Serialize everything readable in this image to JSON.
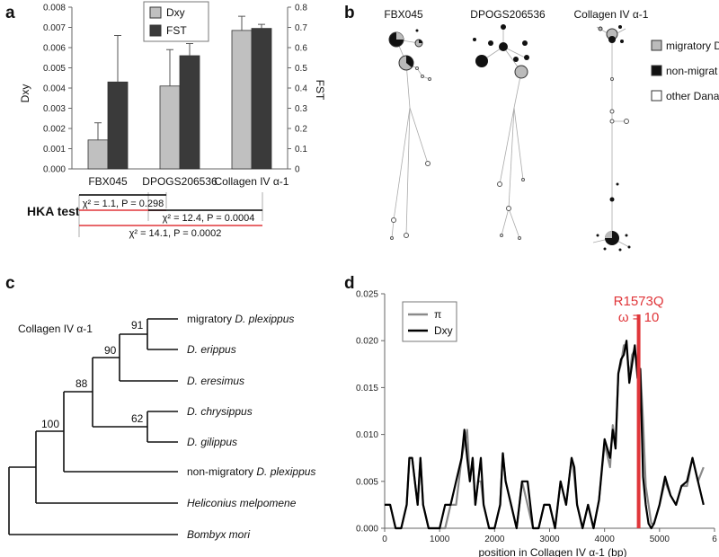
{
  "panels": {
    "a": "a",
    "b": "b",
    "c": "c",
    "d": "d"
  },
  "chart_data": [
    {
      "type": "bar",
      "panel": "a",
      "categories": [
        "FBX045",
        "DPOGS206536",
        "Collagen IV α-1"
      ],
      "series": [
        {
          "name": "Dxy",
          "axis": "left",
          "color": "#c0c0c0",
          "values": [
            0.00143,
            0.0041,
            0.00685
          ],
          "error": [
            0.00085,
            0.0018,
            0.0007
          ]
        },
        {
          "name": "FST",
          "axis": "right",
          "color": "#3a3a3a",
          "values": [
            0.43,
            0.56,
            0.695
          ],
          "error": [
            0.23,
            0.06,
            0.02
          ]
        }
      ],
      "ylabel": "Dxy",
      "ylabel2": "FST",
      "ylim": [
        0,
        0.008
      ],
      "ylim2": [
        0,
        0.8
      ],
      "yticks": [
        "0.000",
        "0.001",
        "0.002",
        "0.003",
        "0.004",
        "0.005",
        "0.006",
        "0.007",
        "0.008"
      ],
      "yticks2": [
        "0",
        "0.1",
        "0.2",
        "0.3",
        "0.4",
        "0.5",
        "0.6",
        "0.7",
        "0.8"
      ],
      "legend": [
        "Dxy",
        "FST"
      ],
      "hka": {
        "title": "HKA test",
        "tests": [
          "χ² = 1.1, P = 0.298",
          "χ² = 12.4, P = 0.0004",
          "χ² = 14.1, P = 0.0002"
        ]
      }
    },
    {
      "type": "network",
      "panel": "b",
      "titles": [
        "FBX045",
        "DPOGS206536",
        "Collagen IV α-1"
      ],
      "legend": [
        "migratory D",
        "non-migrat",
        "other Dana"
      ]
    },
    {
      "type": "tree",
      "panel": "c",
      "title": "Collagen IV α-1",
      "taxa": [
        {
          "name": "migratory ",
          "italic": "D. plexippus",
          "italic_first": false
        },
        {
          "name": "",
          "italic": "D. erippus",
          "italic_first": false
        },
        {
          "name": "",
          "italic": "D. eresimus",
          "italic_first": false
        },
        {
          "name": "",
          "italic": "D. chrysippus",
          "italic_first": false
        },
        {
          "name": "",
          "italic": "D. gilippus",
          "italic_first": false
        },
        {
          "name": "non-migratory ",
          "italic": "D. plexippus",
          "italic_first": false
        },
        {
          "name": "",
          "italic": "Heliconius melpomene",
          "italic_first": false
        },
        {
          "name": "",
          "italic": "Bombyx mori",
          "italic_first": false
        }
      ],
      "bootstrap": [
        "91",
        "90",
        "88",
        "62",
        "100"
      ]
    },
    {
      "type": "line",
      "panel": "d",
      "xlabel": "position in Collagen IV α-1 (bp)",
      "xlim": [
        0,
        6000
      ],
      "ylim": [
        0,
        0.025
      ],
      "xticks": [
        "0",
        "1000",
        "2000",
        "3000",
        "4000",
        "5000",
        "6"
      ],
      "yticks": [
        "0.000",
        "0.005",
        "0.010",
        "0.015",
        "0.020",
        "0.025"
      ],
      "annotation": {
        "label": "R1573Q",
        "label2": "ω = 10",
        "x": 4620,
        "color": "#e0363a"
      },
      "series": [
        {
          "name": "π",
          "color": "#8a8a8a",
          "x": [
            0,
            100,
            200,
            300,
            400,
            450,
            500,
            550,
            600,
            650,
            700,
            800,
            900,
            1000,
            1100,
            1200,
            1300,
            1400,
            1450,
            1500,
            1550,
            1600,
            1650,
            1700,
            1750,
            1800,
            1900,
            2000,
            2100,
            2150,
            2200,
            2300,
            2400,
            2450,
            2500,
            2600,
            2700,
            2800,
            2900,
            3000,
            3100,
            3200,
            3300,
            3400,
            3450,
            3500,
            3600,
            3700,
            3800,
            3900,
            4000,
            4100,
            4150,
            4200,
            4250,
            4300,
            4350,
            4400,
            4450,
            4500,
            4550,
            4600,
            4650,
            4700,
            4750,
            4800,
            4850,
            4900,
            5000,
            5100,
            5200,
            5300,
            5400,
            5500,
            5600,
            5700,
            5800
          ],
          "values": [
            0.0025,
            0.0025,
            0,
            0,
            0.0025,
            0.0075,
            0.0075,
            0.005,
            0.0025,
            0.0075,
            0.0025,
            0,
            0,
            0,
            0,
            0.0025,
            0.0025,
            0.0075,
            0.009,
            0.0105,
            0.005,
            0.0075,
            0.0025,
            0.005,
            0.005,
            0.0025,
            0,
            0,
            0.0025,
            0.008,
            0.005,
            0.0025,
            0,
            0.0025,
            0.005,
            0.0025,
            0,
            0,
            0.0025,
            0.0025,
            0,
            0.005,
            0.0025,
            0.0075,
            0.0055,
            0.0025,
            0,
            0.0025,
            0,
            0.003,
            0.009,
            0.0065,
            0.011,
            0.009,
            0.0165,
            0.0175,
            0.0195,
            0.0195,
            0.016,
            0.0185,
            0.019,
            0.017,
            0.017,
            0.0115,
            0.0045,
            0.0025,
            0.0005,
            0.0005,
            0.0025,
            0.005,
            0.0035,
            0.0025,
            0.0045,
            0.0045,
            0.0075,
            0.005,
            0.0065
          ]
        },
        {
          "name": "Dxy",
          "color": "#000000",
          "x": [
            0,
            100,
            200,
            300,
            400,
            450,
            500,
            550,
            600,
            650,
            700,
            800,
            900,
            1000,
            1100,
            1200,
            1300,
            1400,
            1450,
            1500,
            1550,
            1600,
            1650,
            1700,
            1750,
            1800,
            1900,
            2000,
            2100,
            2150,
            2200,
            2300,
            2400,
            2450,
            2500,
            2600,
            2700,
            2800,
            2900,
            3000,
            3100,
            3200,
            3300,
            3400,
            3450,
            3500,
            3600,
            3700,
            3800,
            3900,
            4000,
            4100,
            4150,
            4200,
            4250,
            4300,
            4350,
            4400,
            4450,
            4500,
            4550,
            4600,
            4650,
            4700,
            4750,
            4800,
            4850,
            4900,
            5000,
            5100,
            5200,
            5300,
            5400,
            5500,
            5600,
            5700,
            5800
          ],
          "values": [
            0.0025,
            0.0025,
            0,
            0,
            0.0025,
            0.0075,
            0.0075,
            0.005,
            0.0025,
            0.0075,
            0.0025,
            0,
            0,
            0,
            0.0025,
            0.0025,
            0.005,
            0.0075,
            0.0105,
            0.0075,
            0.005,
            0.0075,
            0.0025,
            0.005,
            0.0075,
            0.0025,
            0,
            0,
            0.0025,
            0.008,
            0.005,
            0.0025,
            0,
            0.0025,
            0.005,
            0.005,
            0,
            0,
            0.0025,
            0.0025,
            0,
            0.005,
            0.0025,
            0.0075,
            0.0065,
            0.0025,
            0,
            0.0025,
            0,
            0.003,
            0.0095,
            0.0075,
            0.0105,
            0.0085,
            0.0165,
            0.018,
            0.0185,
            0.02,
            0.0155,
            0.0175,
            0.0195,
            0.016,
            0.017,
            0.0055,
            0.0025,
            0.0005,
            0,
            0.0005,
            0.0025,
            0.0055,
            0.0035,
            0.0025,
            0.0045,
            0.005,
            0.0075,
            0.005,
            0.0025
          ]
        }
      ],
      "legend": [
        "π",
        "Dxy"
      ]
    }
  ]
}
